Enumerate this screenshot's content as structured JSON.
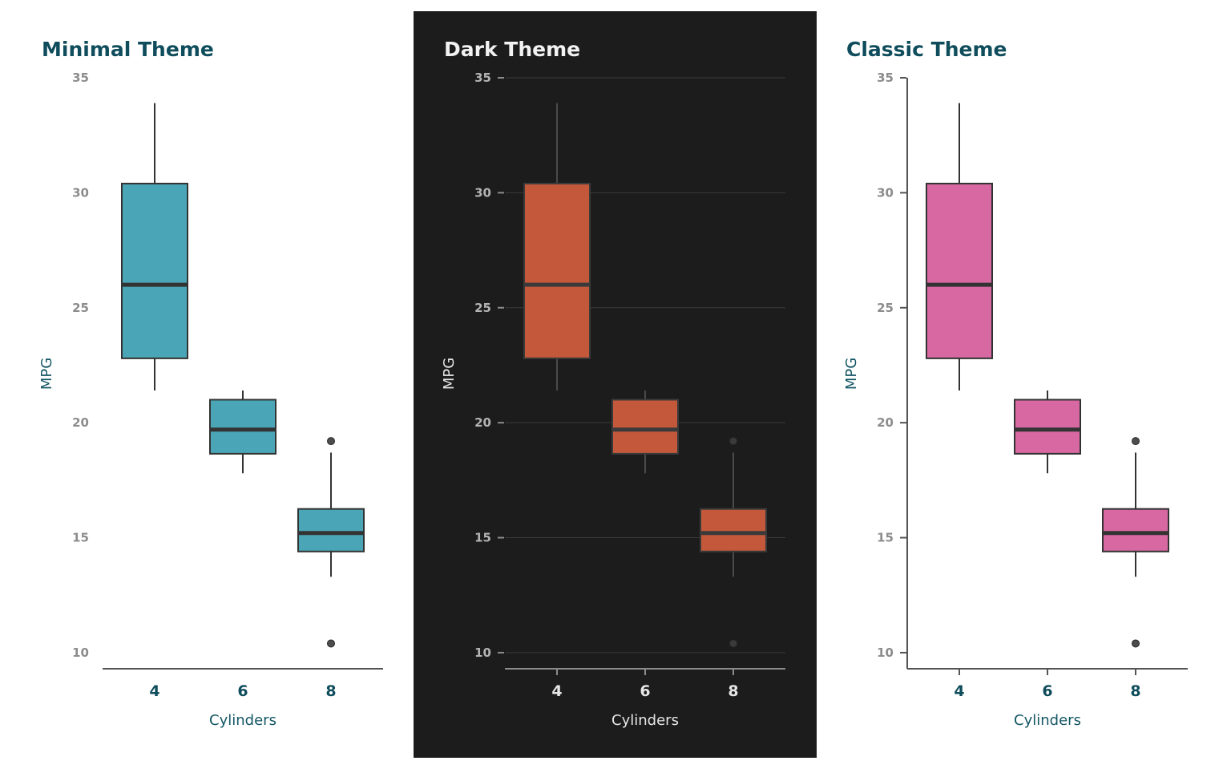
{
  "colors": {
    "title_light": "#0f4d5c",
    "title_dark": "#f2f2f2",
    "tick_light": "#8c8c8c",
    "tick_dark": "#b3b3b3",
    "axis_title_light": "#135664",
    "axis_title_dark": "#e6e6e6",
    "xtick_light": "#0f4d5c",
    "xtick_dark": "#e6e6e6",
    "dark_bg": "#1c1c1c",
    "median": "#333333",
    "box_stroke": "#333333"
  },
  "chart_data": [
    {
      "type": "box",
      "title": "Minimal Theme",
      "theme": "minimal",
      "xlabel": "Cylinders",
      "ylabel": "MPG",
      "categories": [
        "4",
        "6",
        "8"
      ],
      "yticks": [
        "10",
        "15",
        "20",
        "25",
        "30",
        "35"
      ],
      "ylim": [
        9.3,
        35
      ],
      "fill": "#4aa6b6",
      "grid": false,
      "boxes": [
        {
          "category": "4",
          "whisker_low": 21.4,
          "q1": 22.8,
          "median": 26.0,
          "q3": 30.4,
          "whisker_high": 33.9,
          "outliers": []
        },
        {
          "category": "6",
          "whisker_low": 17.8,
          "q1": 18.65,
          "median": 19.7,
          "q3": 21.0,
          "whisker_high": 21.4,
          "outliers": []
        },
        {
          "category": "8",
          "whisker_low": 13.3,
          "q1": 14.4,
          "median": 15.2,
          "q3": 16.25,
          "whisker_high": 18.7,
          "outliers": [
            10.4,
            19.2
          ]
        }
      ]
    },
    {
      "type": "box",
      "title": "Dark Theme",
      "theme": "dark",
      "xlabel": "Cylinders",
      "ylabel": "MPG",
      "categories": [
        "4",
        "6",
        "8"
      ],
      "yticks": [
        "10",
        "15",
        "20",
        "25",
        "30",
        "35"
      ],
      "ylim": [
        9.3,
        35
      ],
      "fill": "#c4583a",
      "grid": true,
      "boxes": [
        {
          "category": "4",
          "whisker_low": 21.4,
          "q1": 22.8,
          "median": 26.0,
          "q3": 30.4,
          "whisker_high": 33.9,
          "outliers": []
        },
        {
          "category": "6",
          "whisker_low": 17.8,
          "q1": 18.65,
          "median": 19.7,
          "q3": 21.0,
          "whisker_high": 21.4,
          "outliers": []
        },
        {
          "category": "8",
          "whisker_low": 13.3,
          "q1": 14.4,
          "median": 15.2,
          "q3": 16.25,
          "whisker_high": 18.7,
          "outliers": [
            10.4,
            19.2
          ]
        }
      ]
    },
    {
      "type": "box",
      "title": "Classic Theme",
      "theme": "classic",
      "xlabel": "Cylinders",
      "ylabel": "MPG",
      "categories": [
        "4",
        "6",
        "8"
      ],
      "yticks": [
        "10",
        "15",
        "20",
        "25",
        "30",
        "35"
      ],
      "ylim": [
        9.3,
        35
      ],
      "fill": "#d768a2",
      "grid": false,
      "boxes": [
        {
          "category": "4",
          "whisker_low": 21.4,
          "q1": 22.8,
          "median": 26.0,
          "q3": 30.4,
          "whisker_high": 33.9,
          "outliers": []
        },
        {
          "category": "6",
          "whisker_low": 17.8,
          "q1": 18.65,
          "median": 19.7,
          "q3": 21.0,
          "whisker_high": 21.4,
          "outliers": []
        },
        {
          "category": "8",
          "whisker_low": 13.3,
          "q1": 14.4,
          "median": 15.2,
          "q3": 16.25,
          "whisker_high": 18.7,
          "outliers": [
            10.4,
            19.2
          ]
        }
      ]
    }
  ]
}
